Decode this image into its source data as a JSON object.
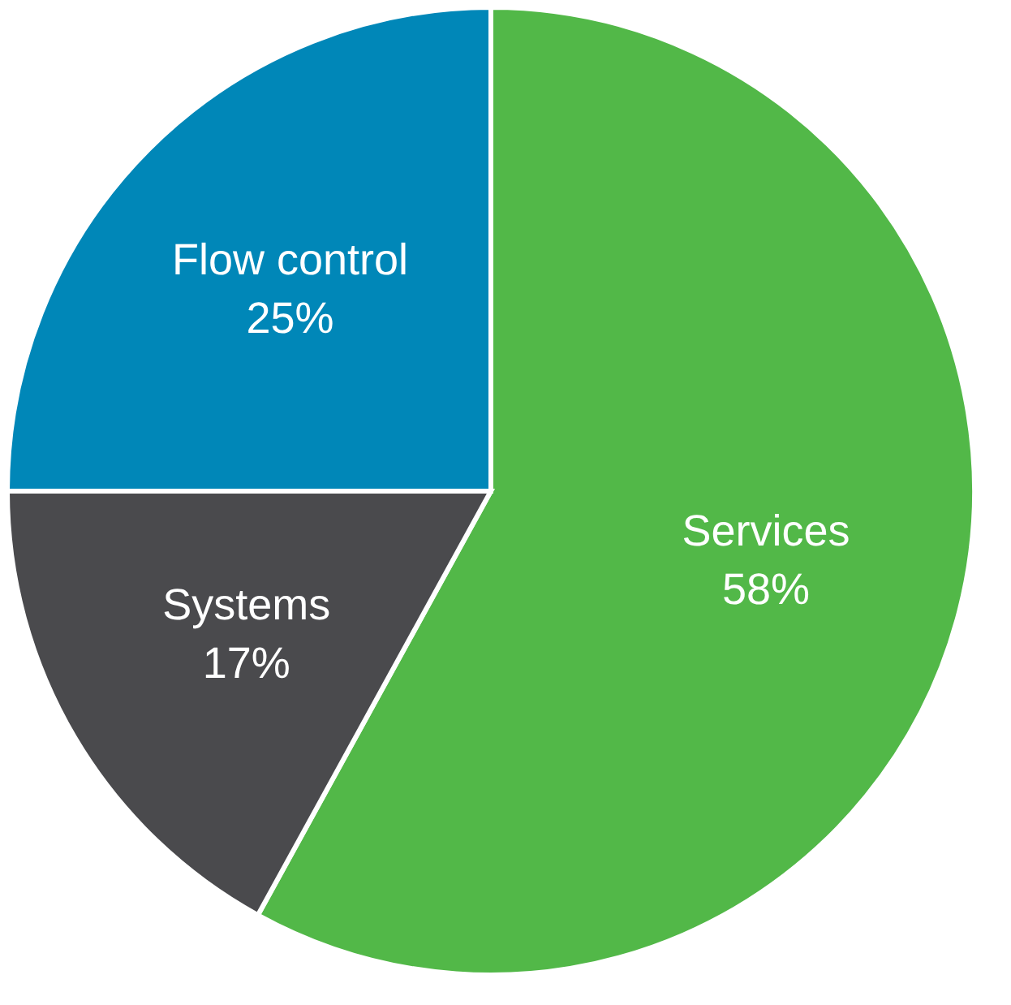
{
  "chart_data": {
    "type": "pie",
    "categories": [
      "Services",
      "Systems",
      "Flow control"
    ],
    "values": [
      58,
      17,
      25
    ],
    "value_labels": [
      "58%",
      "17%",
      "25%"
    ],
    "colors": [
      "#52b848",
      "#4a4a4d",
      "#0087b8"
    ]
  }
}
